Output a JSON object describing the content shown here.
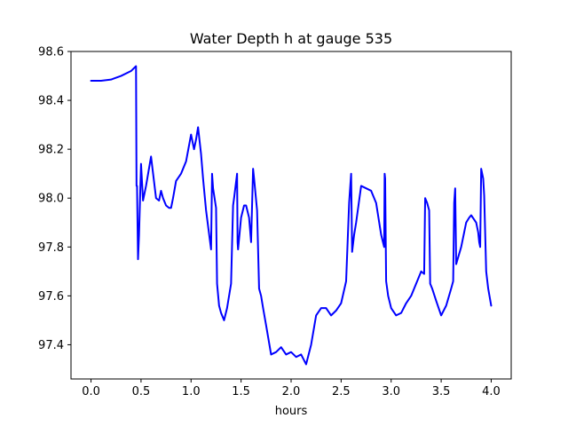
{
  "chart_data": {
    "type": "line",
    "title": "Water Depth h at gauge 535",
    "xlabel": "hours",
    "ylabel": "",
    "xlim": [
      -0.2,
      4.2
    ],
    "ylim": [
      97.26,
      98.6
    ],
    "x_ticks": [
      0.0,
      0.5,
      1.0,
      1.5,
      2.0,
      2.5,
      3.0,
      3.5,
      4.0
    ],
    "x_tick_labels": [
      "0.0",
      "0.5",
      "1.0",
      "1.5",
      "2.0",
      "2.5",
      "3.0",
      "3.5",
      "4.0"
    ],
    "y_ticks": [
      97.4,
      97.6,
      97.8,
      98.0,
      98.2,
      98.4,
      98.6
    ],
    "y_tick_labels": [
      "97.4",
      "97.6",
      "97.8",
      "98.0",
      "98.2",
      "98.4",
      "98.6"
    ],
    "grid": false,
    "series": [
      {
        "color": "#0000ff",
        "x": [
          0.0,
          0.1,
          0.2,
          0.3,
          0.4,
          0.45,
          0.455,
          0.46,
          0.47,
          0.48,
          0.5,
          0.52,
          0.55,
          0.6,
          0.65,
          0.68,
          0.7,
          0.72,
          0.75,
          0.78,
          0.8,
          0.82,
          0.85,
          0.9,
          0.95,
          1.0,
          1.03,
          1.05,
          1.07,
          1.1,
          1.12,
          1.15,
          1.2,
          1.21,
          1.22,
          1.25,
          1.26,
          1.28,
          1.3,
          1.33,
          1.36,
          1.4,
          1.42,
          1.43,
          1.46,
          1.465,
          1.47,
          1.5,
          1.53,
          1.55,
          1.58,
          1.6,
          1.62,
          1.63,
          1.66,
          1.68,
          1.7,
          1.72,
          1.75,
          1.8,
          1.85,
          1.9,
          1.95,
          2.0,
          2.05,
          2.1,
          2.15,
          2.2,
          2.25,
          2.3,
          2.35,
          2.4,
          2.45,
          2.5,
          2.55,
          2.58,
          2.6,
          2.61,
          2.63,
          2.65,
          2.7,
          2.75,
          2.8,
          2.85,
          2.9,
          2.93,
          2.935,
          2.94,
          2.95,
          2.97,
          3.0,
          3.05,
          3.1,
          3.15,
          3.2,
          3.25,
          3.3,
          3.33,
          3.34,
          3.36,
          3.38,
          3.39,
          3.41,
          3.45,
          3.5,
          3.55,
          3.6,
          3.62,
          3.63,
          3.64,
          3.65,
          3.7,
          3.75,
          3.78,
          3.8,
          3.85,
          3.87,
          3.88,
          3.89,
          3.9,
          3.92,
          3.93,
          3.95,
          3.97,
          4.0
        ],
        "values": [
          98.48,
          98.48,
          98.485,
          98.5,
          98.52,
          98.54,
          98.05,
          98.05,
          97.75,
          97.85,
          98.14,
          97.99,
          98.05,
          98.17,
          98.0,
          97.99,
          98.03,
          98.0,
          97.97,
          97.96,
          97.96,
          98.0,
          98.07,
          98.1,
          98.15,
          98.26,
          98.2,
          98.24,
          98.29,
          98.18,
          98.08,
          97.95,
          97.79,
          98.1,
          98.04,
          97.96,
          97.65,
          97.56,
          97.53,
          97.5,
          97.55,
          97.65,
          97.97,
          98.0,
          98.1,
          97.82,
          97.79,
          97.92,
          97.97,
          97.97,
          97.92,
          97.82,
          98.12,
          98.08,
          97.95,
          97.63,
          97.6,
          97.55,
          97.48,
          97.36,
          97.37,
          97.39,
          97.36,
          97.37,
          97.35,
          97.36,
          97.32,
          97.4,
          97.52,
          97.55,
          97.55,
          97.52,
          97.54,
          97.57,
          97.66,
          97.98,
          98.1,
          97.78,
          97.85,
          97.9,
          98.05,
          98.04,
          98.03,
          97.98,
          97.85,
          97.8,
          98.1,
          98.08,
          97.66,
          97.6,
          97.55,
          97.52,
          97.53,
          97.57,
          97.6,
          97.65,
          97.7,
          97.69,
          98.0,
          97.98,
          97.95,
          97.65,
          97.63,
          97.58,
          97.52,
          97.56,
          97.63,
          97.66,
          97.98,
          98.04,
          97.73,
          97.8,
          97.9,
          97.92,
          97.93,
          97.9,
          97.86,
          97.82,
          97.8,
          98.12,
          98.08,
          98.01,
          97.7,
          97.63,
          97.56
        ]
      }
    ]
  }
}
